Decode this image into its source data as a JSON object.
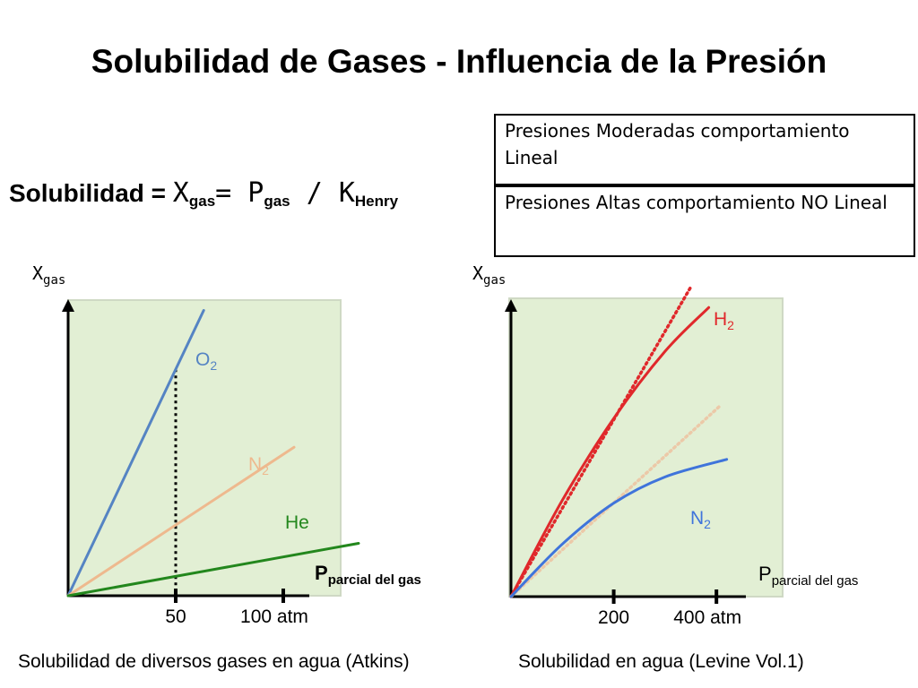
{
  "page": {
    "title": "Solubilidad de Gases - Influencia de la Presión",
    "formula": {
      "label": "Solubilidad =",
      "x": "X",
      "x_sub": "gas",
      "eq1": "= P",
      "p_sub": "gas",
      "eq2": " / K",
      "k_sub": "Henry"
    },
    "notes": [
      "Presiones Moderadas comportamiento Lineal",
      "Presiones Altas comportamiento NO Lineal"
    ],
    "colors": {
      "background": "#e2efd4",
      "O2": "#5584c3",
      "N2_left": "#eeb98e",
      "He": "#23871d",
      "H2": "#e0282b",
      "N2_right": "#3f74db",
      "ideal": "#ecc9a8"
    }
  },
  "chart_data": [
    {
      "type": "line",
      "title": "",
      "caption": "Solubilidad de diversos gases en agua (Atkins)",
      "ylabel": "X",
      "ylabel_sub": "gas",
      "xlabel": "P",
      "xlabel_sub": "parcial del gas",
      "xlabel_bold": true,
      "xticks": [
        {
          "value": 50,
          "label": "50"
        },
        {
          "value": 100,
          "label": "100 atm"
        }
      ],
      "xlim": [
        0,
        110
      ],
      "ylim": [
        0,
        1
      ],
      "reference_line_x": 50,
      "series": [
        {
          "name": "O2",
          "label": "O",
          "label_sub": "2",
          "color": "#5584c3",
          "x": [
            0,
            63
          ],
          "y": [
            0,
            0.98
          ]
        },
        {
          "name": "N2",
          "label": "N",
          "label_sub": "2",
          "color": "#eeb98e",
          "x": [
            0,
            105
          ],
          "y": [
            0,
            0.51
          ]
        },
        {
          "name": "He",
          "label": "He",
          "label_sub": "",
          "color": "#23871d",
          "x": [
            0,
            135
          ],
          "y": [
            0,
            0.18
          ]
        }
      ]
    },
    {
      "type": "line",
      "title": "",
      "caption": "Solubilidad en agua (Levine Vol.1)",
      "ylabel": "X",
      "ylabel_sub": "gas",
      "xlabel": "P",
      "xlabel_sub": "parcial del gas",
      "xlabel_bold": false,
      "xticks": [
        {
          "value": 200,
          "label": "200"
        },
        {
          "value": 400,
          "label": "400 atm"
        }
      ],
      "xlim": [
        0,
        480
      ],
      "ylim": [
        0,
        1
      ],
      "series": [
        {
          "name": "H2",
          "label": "H",
          "label_sub": "2",
          "color": "#e0282b",
          "style": "solid",
          "x": [
            0,
            100,
            200,
            300,
            385
          ],
          "y": [
            0,
            0.33,
            0.61,
            0.84,
            0.99
          ]
        },
        {
          "name": "H2-ideal",
          "color": "#e0282b",
          "style": "dotted",
          "x": [
            0,
            350
          ],
          "y": [
            0,
            1.06
          ]
        },
        {
          "name": "N2-ideal",
          "color": "#ecc9a8",
          "style": "dotted",
          "x": [
            0,
            405
          ],
          "y": [
            0,
            0.65
          ]
        },
        {
          "name": "N2",
          "label": "N",
          "label_sub": "2",
          "color": "#3f74db",
          "style": "solid",
          "x": [
            0,
            100,
            200,
            300,
            420
          ],
          "y": [
            0,
            0.18,
            0.32,
            0.41,
            0.47
          ]
        }
      ]
    }
  ]
}
